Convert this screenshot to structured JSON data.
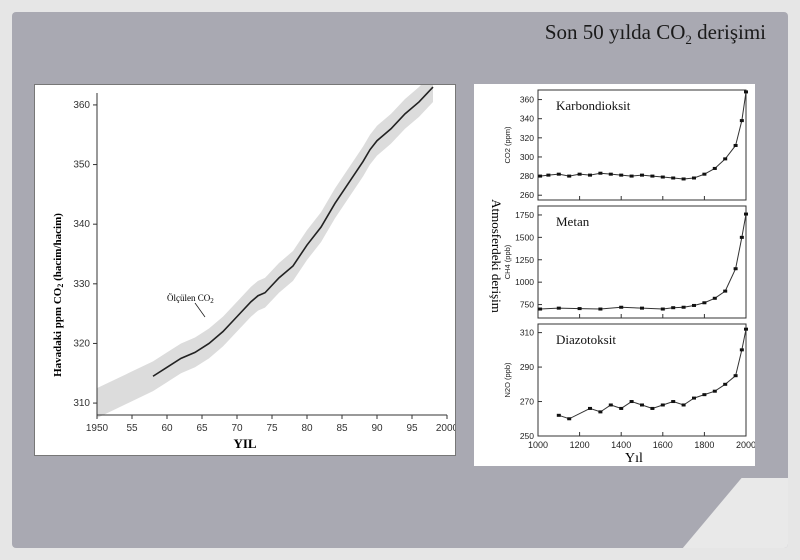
{
  "slide": {
    "title_main": "Son 50 yılda CO",
    "title_sub": "2",
    "title_tail": " derişimi"
  },
  "chart_data": [
    {
      "type": "line",
      "title": "",
      "xlabel": "YIL",
      "ylabel": "Havadaki ppm CO2 (hacim/hacim)",
      "xlim": [
        1950,
        2000
      ],
      "ylim": [
        308,
        362
      ],
      "xticks": [
        "1950",
        "55",
        "60",
        "65",
        "70",
        "75",
        "80",
        "85",
        "90",
        "95",
        "2000"
      ],
      "yticks": [
        "310",
        "320",
        "330",
        "340",
        "350",
        "360"
      ],
      "annotation": "Ölçülen CO2",
      "series": [
        {
          "name": "Ölçülen CO2",
          "x": [
            1958,
            1960,
            1962,
            1964,
            1966,
            1968,
            1970,
            1972,
            1973,
            1974,
            1976,
            1978,
            1980,
            1982,
            1984,
            1986,
            1988,
            1989,
            1990,
            1992,
            1994,
            1996,
            1998
          ],
          "y": [
            314.5,
            316,
            317.5,
            318.5,
            320,
            322,
            324.5,
            327,
            328,
            328.5,
            331,
            333,
            336.5,
            339.5,
            343.5,
            347,
            350.5,
            352.5,
            354,
            356,
            358.5,
            360.5,
            363
          ]
        }
      ]
    },
    {
      "type": "scatter",
      "label": "Karbondioksit",
      "ylabel": "CO2 (ppm)",
      "xlim": [
        1000,
        2000
      ],
      "ylim": [
        255,
        370
      ],
      "yticks": [
        "260",
        "280",
        "300",
        "320",
        "340",
        "360"
      ],
      "x": [
        1010,
        1050,
        1100,
        1150,
        1200,
        1250,
        1300,
        1350,
        1400,
        1450,
        1500,
        1550,
        1600,
        1650,
        1700,
        1750,
        1800,
        1850,
        1900,
        1950,
        1980,
        2000
      ],
      "y": [
        280,
        281,
        282,
        280,
        282,
        281,
        283,
        282,
        281,
        280,
        281,
        280,
        279,
        278,
        277,
        278,
        282,
        288,
        298,
        312,
        338,
        368
      ]
    },
    {
      "type": "scatter",
      "label": "Metan",
      "ylabel": "CH4 (ppb)",
      "xlim": [
        1000,
        2000
      ],
      "ylim": [
        600,
        1850
      ],
      "yticks": [
        "750",
        "1000",
        "1250",
        "1500",
        "1750"
      ],
      "x": [
        1010,
        1100,
        1200,
        1300,
        1400,
        1500,
        1600,
        1650,
        1700,
        1750,
        1800,
        1850,
        1900,
        1950,
        1980,
        2000
      ],
      "y": [
        700,
        710,
        705,
        700,
        720,
        710,
        700,
        715,
        720,
        740,
        770,
        820,
        900,
        1150,
        1500,
        1760
      ]
    },
    {
      "type": "scatter",
      "label": "Diazotoksit",
      "ylabel": "N2O (ppb)",
      "xlim": [
        1000,
        2000
      ],
      "ylim": [
        250,
        315
      ],
      "yticks": [
        "250",
        "270",
        "290",
        "310"
      ],
      "xlabel": "Yıl",
      "xticks": [
        "1000",
        "1200",
        "1400",
        "1600",
        "1800",
        "2000"
      ],
      "x": [
        1100,
        1150,
        1250,
        1300,
        1350,
        1400,
        1450,
        1500,
        1550,
        1600,
        1650,
        1700,
        1750,
        1800,
        1850,
        1900,
        1950,
        1980,
        2000
      ],
      "y": [
        262,
        260,
        266,
        264,
        268,
        266,
        270,
        268,
        266,
        268,
        270,
        268,
        272,
        274,
        276,
        280,
        285,
        300,
        312
      ]
    },
    {
      "type": "scatter",
      "shared_ylabel": "Atmosferdeki derişim"
    }
  ]
}
